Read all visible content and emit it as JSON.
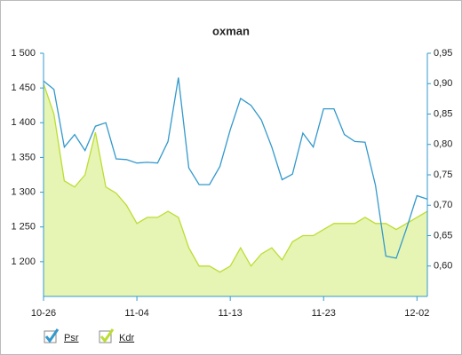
{
  "chart_data": {
    "type": "line",
    "title": "oxman",
    "categories": [
      "10-26",
      null,
      null,
      null,
      null,
      null,
      null,
      null,
      null,
      "11-04",
      null,
      null,
      null,
      null,
      null,
      null,
      null,
      null,
      "11-13",
      null,
      null,
      null,
      null,
      null,
      null,
      null,
      null,
      "11-23",
      null,
      null,
      null,
      null,
      null,
      null,
      null,
      null,
      "12-02",
      null
    ],
    "series": [
      {
        "name": "Psr",
        "color": "#3399cc",
        "axis": "y",
        "values": [
          1460,
          1448,
          1365,
          1383,
          1360,
          1395,
          1400,
          1348,
          1347,
          1342,
          1343,
          1342,
          1373,
          1465,
          1335,
          1311,
          1311,
          1337,
          1390,
          1435,
          1425,
          1404,
          1365,
          1318,
          1326,
          1385,
          1365,
          1420,
          1420,
          1383,
          1373,
          1372,
          1310,
          1208,
          1205,
          1248,
          1295,
          1290
        ]
      },
      {
        "name": "Kdr",
        "color": "#bbdd33",
        "axis": "y2",
        "values": [
          0.9,
          0.85,
          0.74,
          0.73,
          0.75,
          0.82,
          0.73,
          0.72,
          0.7,
          0.67,
          0.68,
          0.68,
          0.69,
          0.68,
          0.63,
          0.6,
          0.6,
          0.59,
          0.6,
          0.63,
          0.6,
          0.62,
          0.63,
          0.61,
          0.64,
          0.65,
          0.65,
          0.66,
          0.67,
          0.67,
          0.67,
          0.68,
          0.67,
          0.67,
          0.66,
          0.67,
          0.68,
          0.69
        ]
      }
    ],
    "ylim": [
      1150,
      1500
    ],
    "yticks": [
      {
        "value": 1200,
        "label": "1 200"
      },
      {
        "value": 1250,
        "label": "1 250"
      },
      {
        "value": 1300,
        "label": "1 300"
      },
      {
        "value": 1350,
        "label": "1 350"
      },
      {
        "value": 1400,
        "label": "1 400"
      },
      {
        "value": 1450,
        "label": "1 450"
      },
      {
        "value": 1500,
        "label": "1 500"
      }
    ],
    "y2lim": [
      0.55,
      0.95
    ],
    "y2ticks": [
      {
        "value": 0.6,
        "label": "0,60"
      },
      {
        "value": 0.65,
        "label": "0,65"
      },
      {
        "value": 0.7,
        "label": "0,70"
      },
      {
        "value": 0.75,
        "label": "0,75"
      },
      {
        "value": 0.8,
        "label": "0,80"
      },
      {
        "value": 0.85,
        "label": "0,85"
      },
      {
        "value": 0.9,
        "label": "0,90"
      },
      {
        "value": 0.95,
        "label": "0,95"
      }
    ],
    "grid": false
  }
}
